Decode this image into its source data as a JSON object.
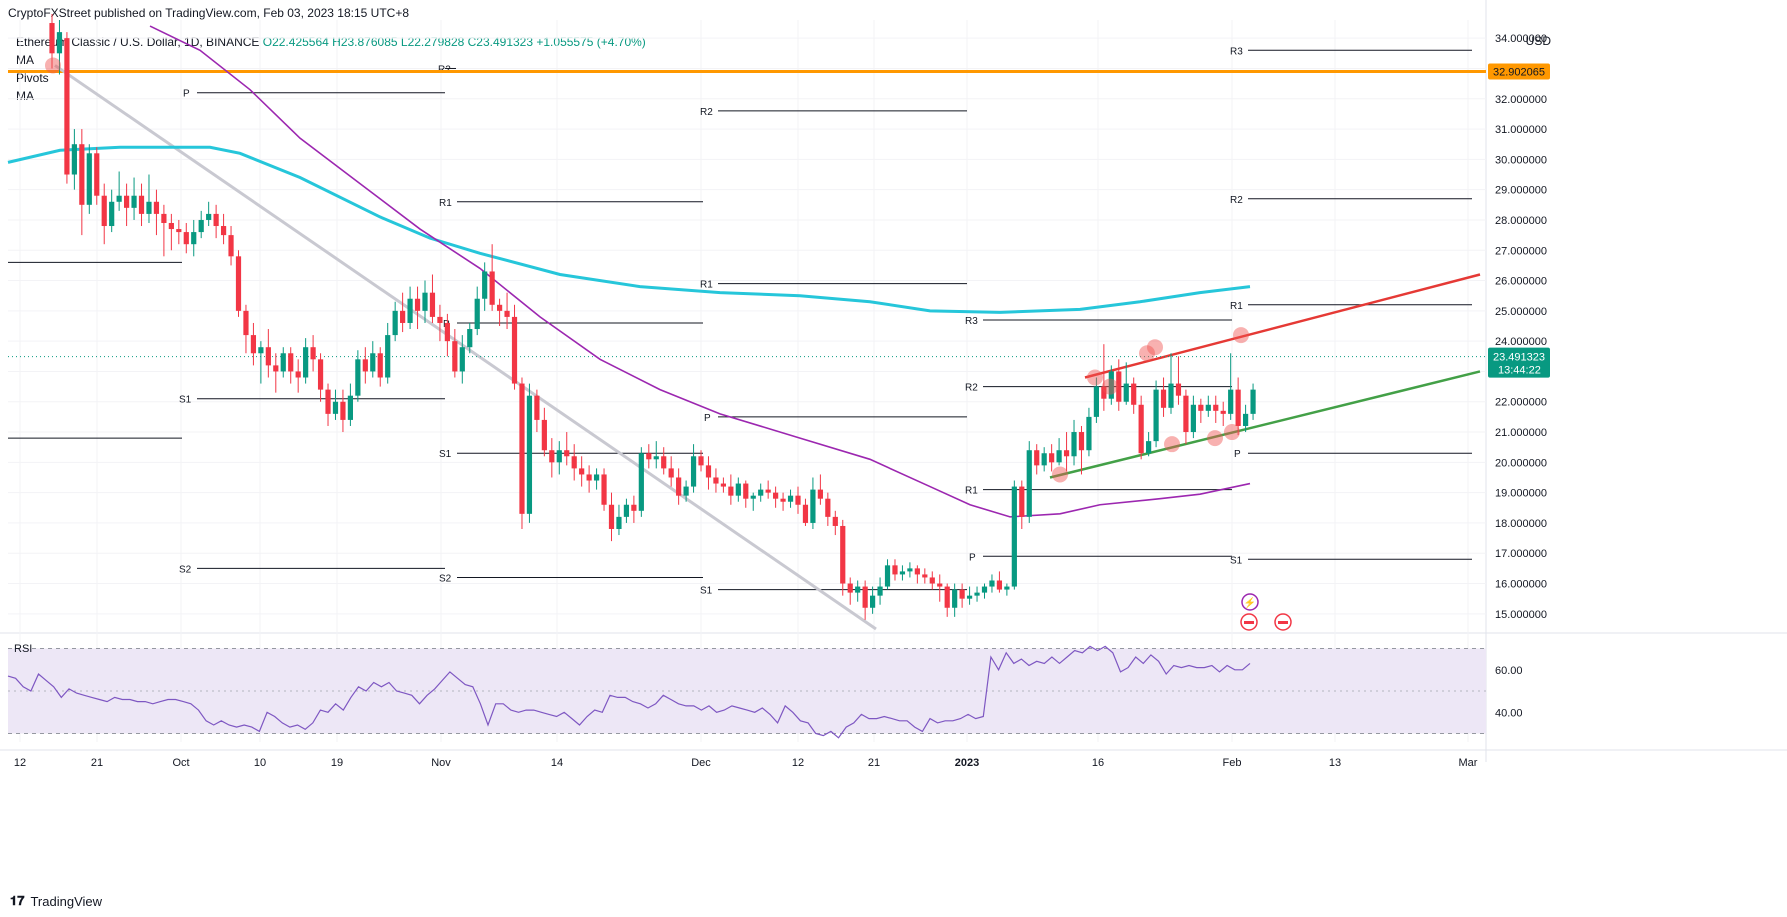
{
  "header": {
    "published": "CryptoFXStreet published on TradingView.com, Feb 03, 2023 18:15 UTC+8"
  },
  "legend": {
    "symbol": "Ethereum Classic / U.S. Dollar, 1D, BINANCE",
    "open": "O22.425564",
    "high": "H23.876085",
    "low": "L22.279828",
    "close": "C23.491323",
    "change": "+1.055575 (+4.70%)",
    "indicators": [
      "MA",
      "Pivots",
      "MA"
    ]
  },
  "currency": "USD",
  "price_labels": {
    "current_price": "23.491323",
    "countdown": "13:44:22",
    "orange_level": "32.902065"
  },
  "brand": "TradingView",
  "colors": {
    "up": "#089981",
    "down": "#f23645",
    "ma200": "#26c6da",
    "ma50": "#9c27b0",
    "orange": "#ff9800",
    "resistance": "#e53935",
    "support": "#43a047",
    "downtrend": "#c9c9d1",
    "rsi_line": "#7e57c2",
    "rsi_band": "#ede7f6"
  },
  "chart_data": [
    {
      "type": "candlestick",
      "title": "Ethereum Classic / U.S. Dollar, 1D, BINANCE",
      "ylim": [
        14.4,
        34.6
      ],
      "y_ticks": [
        "34.000000",
        "33.000000",
        "32.000000",
        "31.000000",
        "30.000000",
        "29.000000",
        "28.000000",
        "27.000000",
        "26.000000",
        "25.000000",
        "24.000000",
        "23.000000",
        "22.000000",
        "21.000000",
        "20.000000",
        "19.000000",
        "18.000000",
        "17.000000",
        "16.000000",
        "15.000000"
      ],
      "x_ticks": [
        "12",
        "21",
        "Oct",
        "10",
        "19",
        "Nov",
        "14",
        "Dec",
        "12",
        "21",
        "2023",
        "16",
        "Feb",
        "13",
        "Mar"
      ],
      "candles": [
        [
          34.5,
          33.5,
          34.8,
          33.0
        ],
        [
          33.5,
          34.2,
          34.6,
          32.8
        ],
        [
          34.0,
          29.5,
          34.2,
          29.2
        ],
        [
          29.5,
          30.5,
          31.0,
          29.0
        ],
        [
          30.5,
          28.5,
          31.0,
          27.5
        ],
        [
          28.5,
          30.2,
          30.5,
          28.2
        ],
        [
          30.2,
          28.8,
          30.4,
          28.5
        ],
        [
          28.8,
          27.8,
          29.2,
          27.2
        ],
        [
          27.8,
          28.6,
          29.0,
          27.6
        ],
        [
          28.6,
          28.8,
          29.6,
          28.3
        ],
        [
          28.8,
          28.4,
          29.2,
          27.8
        ],
        [
          28.4,
          28.8,
          29.4,
          28.0
        ],
        [
          28.8,
          28.2,
          29.2,
          27.8
        ],
        [
          28.2,
          28.6,
          29.5,
          27.9
        ],
        [
          28.6,
          28.2,
          29.0,
          27.5
        ],
        [
          28.2,
          27.9,
          28.5,
          26.8
        ],
        [
          27.9,
          27.7,
          28.2,
          27.0
        ],
        [
          27.7,
          27.6,
          28.0,
          27.2
        ],
        [
          27.6,
          27.2,
          27.9,
          26.9
        ],
        [
          27.2,
          27.6,
          28.0,
          26.8
        ],
        [
          27.6,
          28.0,
          28.3,
          27.4
        ],
        [
          28.0,
          28.2,
          28.6,
          27.8
        ],
        [
          28.2,
          27.8,
          28.5,
          27.4
        ],
        [
          27.8,
          27.5,
          28.2,
          27.2
        ],
        [
          27.5,
          26.8,
          27.8,
          26.5
        ],
        [
          26.8,
          25.0,
          27.0,
          24.8
        ],
        [
          25.0,
          24.2,
          25.2,
          23.6
        ],
        [
          24.2,
          23.6,
          24.6,
          23.2
        ],
        [
          23.6,
          23.8,
          24.0,
          22.6
        ],
        [
          23.8,
          23.2,
          24.4,
          22.8
        ],
        [
          23.2,
          23.0,
          23.6,
          22.3
        ],
        [
          23.0,
          23.6,
          23.8,
          22.8
        ],
        [
          23.6,
          23.0,
          23.8,
          22.6
        ],
        [
          23.0,
          22.8,
          23.4,
          22.3
        ],
        [
          22.8,
          23.8,
          24.1,
          22.6
        ],
        [
          23.8,
          23.4,
          24.2,
          23.0
        ],
        [
          23.4,
          22.4,
          23.6,
          22.0
        ],
        [
          22.4,
          21.6,
          22.6,
          21.2
        ],
        [
          21.6,
          22.0,
          22.4,
          21.4
        ],
        [
          22.0,
          21.4,
          22.4,
          21.0
        ],
        [
          21.4,
          22.2,
          22.6,
          21.2
        ],
        [
          22.2,
          23.4,
          23.7,
          22.0
        ],
        [
          23.4,
          23.0,
          23.8,
          22.6
        ],
        [
          23.0,
          23.6,
          24.0,
          22.8
        ],
        [
          23.6,
          22.8,
          23.8,
          22.5
        ],
        [
          22.8,
          24.2,
          24.6,
          22.6
        ],
        [
          24.2,
          25.0,
          25.3,
          24.0
        ],
        [
          25.0,
          24.6,
          25.6,
          24.3
        ],
        [
          24.6,
          25.4,
          25.8,
          24.4
        ],
        [
          25.4,
          25.0,
          25.8,
          24.4
        ],
        [
          25.0,
          25.6,
          26.0,
          24.6
        ],
        [
          25.6,
          24.8,
          26.2,
          24.6
        ],
        [
          24.8,
          24.6,
          25.2,
          24.0
        ],
        [
          24.6,
          24.0,
          24.9,
          23.5
        ],
        [
          24.0,
          23.0,
          24.4,
          22.8
        ],
        [
          23.0,
          23.8,
          24.2,
          22.6
        ],
        [
          23.8,
          24.4,
          24.6,
          23.6
        ],
        [
          24.4,
          25.4,
          25.8,
          24.2
        ],
        [
          25.4,
          26.3,
          26.6,
          25.0
        ],
        [
          26.3,
          25.2,
          27.2,
          25.0
        ],
        [
          25.2,
          25.0,
          25.4,
          24.5
        ],
        [
          25.0,
          24.8,
          25.6,
          24.4
        ],
        [
          24.8,
          22.6,
          25.2,
          22.4
        ],
        [
          22.6,
          18.3,
          22.8,
          17.8
        ],
        [
          18.3,
          22.2,
          22.6,
          18.0
        ],
        [
          22.2,
          21.4,
          22.4,
          21.0
        ],
        [
          21.4,
          20.4,
          21.8,
          20.2
        ],
        [
          20.4,
          20.0,
          20.8,
          19.5
        ],
        [
          20.0,
          20.4,
          20.7,
          19.6
        ],
        [
          20.4,
          20.2,
          21.0,
          19.9
        ],
        [
          20.2,
          19.8,
          20.6,
          19.4
        ],
        [
          19.8,
          19.6,
          20.2,
          19.2
        ],
        [
          19.6,
          19.4,
          19.9,
          19.0
        ],
        [
          19.4,
          19.6,
          19.8,
          19.1
        ],
        [
          19.6,
          18.6,
          19.8,
          18.4
        ],
        [
          18.6,
          17.8,
          19.0,
          17.4
        ],
        [
          17.8,
          18.2,
          18.6,
          17.6
        ],
        [
          18.2,
          18.6,
          18.8,
          18.0
        ],
        [
          18.6,
          18.4,
          18.9,
          18.0
        ],
        [
          18.4,
          20.3,
          20.5,
          18.2
        ],
        [
          20.3,
          20.1,
          20.6,
          19.8
        ],
        [
          20.1,
          20.2,
          20.7,
          19.8
        ],
        [
          20.2,
          19.8,
          20.5,
          19.6
        ],
        [
          19.8,
          19.5,
          20.2,
          19.2
        ],
        [
          19.5,
          18.9,
          19.8,
          18.6
        ],
        [
          18.9,
          19.2,
          19.4,
          18.7
        ],
        [
          19.2,
          20.2,
          20.6,
          19.0
        ],
        [
          20.2,
          19.9,
          20.4,
          19.7
        ],
        [
          19.9,
          19.5,
          20.2,
          19.1
        ],
        [
          19.5,
          19.3,
          19.8,
          19.0
        ],
        [
          19.3,
          19.2,
          19.5,
          19.0
        ],
        [
          19.2,
          18.9,
          19.6,
          18.6
        ],
        [
          18.9,
          19.3,
          19.5,
          18.7
        ],
        [
          19.3,
          18.8,
          19.4,
          18.5
        ],
        [
          18.8,
          18.9,
          19.0,
          18.4
        ],
        [
          18.9,
          19.1,
          19.3,
          18.7
        ],
        [
          19.1,
          19.0,
          19.4,
          18.8
        ],
        [
          19.0,
          18.8,
          19.2,
          18.5
        ],
        [
          18.8,
          18.7,
          19.0,
          18.4
        ],
        [
          18.7,
          18.9,
          19.1,
          18.5
        ],
        [
          18.9,
          18.6,
          19.2,
          18.3
        ],
        [
          18.6,
          18.0,
          18.8,
          17.9
        ],
        [
          18.0,
          19.1,
          19.5,
          17.8
        ],
        [
          19.1,
          18.8,
          19.6,
          18.6
        ],
        [
          18.8,
          18.2,
          19.0,
          17.9
        ],
        [
          18.2,
          17.9,
          18.4,
          17.6
        ],
        [
          17.9,
          16.0,
          18.1,
          15.6
        ],
        [
          16.0,
          15.7,
          16.2,
          15.3
        ],
        [
          15.7,
          15.9,
          16.1,
          15.4
        ],
        [
          15.9,
          15.2,
          16.1,
          14.8
        ],
        [
          15.2,
          15.6,
          15.9,
          15.0
        ],
        [
          15.6,
          15.9,
          16.2,
          15.3
        ],
        [
          15.9,
          16.6,
          16.8,
          15.8
        ],
        [
          16.6,
          16.3,
          16.8,
          16.1
        ],
        [
          16.3,
          16.4,
          16.6,
          16.1
        ],
        [
          16.4,
          16.5,
          16.7,
          16.2
        ],
        [
          16.5,
          16.3,
          16.6,
          16.0
        ],
        [
          16.3,
          16.2,
          16.5,
          16.0
        ],
        [
          16.2,
          16.0,
          16.4,
          15.8
        ],
        [
          16.0,
          15.9,
          16.3,
          15.4
        ],
        [
          15.9,
          15.2,
          16.0,
          14.9
        ],
        [
          15.2,
          15.8,
          16.0,
          14.9
        ],
        [
          15.8,
          15.5,
          16.0,
          15.2
        ],
        [
          15.5,
          15.6,
          15.9,
          15.3
        ],
        [
          15.6,
          15.7,
          15.9,
          15.4
        ],
        [
          15.7,
          15.9,
          16.0,
          15.5
        ],
        [
          15.9,
          16.1,
          16.3,
          15.7
        ],
        [
          16.1,
          15.8,
          16.4,
          15.7
        ],
        [
          15.8,
          15.9,
          16.0,
          15.6
        ],
        [
          15.9,
          19.2,
          19.4,
          15.8
        ],
        [
          19.2,
          18.2,
          19.4,
          17.8
        ],
        [
          18.2,
          20.4,
          20.7,
          18.0
        ],
        [
          20.4,
          19.9,
          20.6,
          19.6
        ],
        [
          19.9,
          20.3,
          20.5,
          19.7
        ],
        [
          20.3,
          20.0,
          20.6,
          19.7
        ],
        [
          20.0,
          20.4,
          20.8,
          19.9
        ],
        [
          20.4,
          20.2,
          21.0,
          19.7
        ],
        [
          20.2,
          21.0,
          21.4,
          19.9
        ],
        [
          21.0,
          20.4,
          21.2,
          19.6
        ],
        [
          20.4,
          21.5,
          21.8,
          20.2
        ],
        [
          21.5,
          22.5,
          22.8,
          21.3
        ],
        [
          22.5,
          22.1,
          23.9,
          21.7
        ],
        [
          22.1,
          23.0,
          23.2,
          21.9
        ],
        [
          23.0,
          22.0,
          23.4,
          21.7
        ],
        [
          22.0,
          22.6,
          23.3,
          21.9
        ],
        [
          22.6,
          21.9,
          22.8,
          21.6
        ],
        [
          21.9,
          20.3,
          22.2,
          20.1
        ],
        [
          20.3,
          20.7,
          21.0,
          20.2
        ],
        [
          20.7,
          22.4,
          22.7,
          20.5
        ],
        [
          22.4,
          21.8,
          22.8,
          21.5
        ],
        [
          21.8,
          22.6,
          23.6,
          21.6
        ],
        [
          22.6,
          22.2,
          23.5,
          21.9
        ],
        [
          22.2,
          21.0,
          22.4,
          20.6
        ],
        [
          21.0,
          21.9,
          22.2,
          20.8
        ],
        [
          21.9,
          21.7,
          22.1,
          21.3
        ],
        [
          21.7,
          21.9,
          22.2,
          21.5
        ],
        [
          21.9,
          21.7,
          22.2,
          21.3
        ],
        [
          21.7,
          21.6,
          22.0,
          21.2
        ],
        [
          21.6,
          22.4,
          23.6,
          21.4
        ],
        [
          22.4,
          21.2,
          22.8,
          20.9
        ],
        [
          21.2,
          21.6,
          21.9,
          21.0
        ],
        [
          21.6,
          22.4,
          22.6,
          21.4
        ],
        [
          22.4,
          22.4,
          24.1,
          22.2
        ],
        [
          22.4,
          23.49,
          23.88,
          22.28
        ]
      ]
    },
    {
      "type": "line",
      "title": "RSI",
      "ylim": [
        26,
        74
      ],
      "y_ticks": [
        "60.00",
        "40.00"
      ],
      "band": [
        30,
        70
      ],
      "midline": 50,
      "values": [
        57,
        56,
        52,
        50,
        58,
        55,
        52,
        47,
        51,
        49,
        48,
        47,
        46,
        45,
        47,
        46,
        46,
        45,
        45,
        44,
        45,
        46,
        46,
        45,
        44,
        41,
        36,
        34,
        36,
        34,
        33,
        34,
        33,
        31,
        40,
        38,
        35,
        33,
        34,
        32,
        35,
        41,
        40,
        44,
        41,
        47,
        52,
        50,
        54,
        52,
        54,
        50,
        49,
        48,
        44,
        48,
        51,
        55,
        59,
        56,
        53,
        52,
        44,
        34,
        44,
        44,
        41,
        40,
        41,
        41,
        40,
        39,
        38,
        40,
        37,
        34,
        38,
        41,
        40,
        48,
        47,
        47,
        45,
        44,
        42,
        44,
        48,
        46,
        44,
        43,
        43,
        41,
        43,
        40,
        41,
        43,
        42,
        41,
        40,
        42,
        39,
        35,
        43,
        40,
        36,
        35,
        30,
        29,
        31,
        28,
        33,
        35,
        39,
        37,
        37,
        38,
        37,
        36,
        36,
        33,
        31,
        37,
        35,
        36,
        36,
        37,
        39,
        37,
        38,
        66,
        60,
        68,
        63,
        65,
        62,
        64,
        63,
        66,
        63,
        66,
        69,
        68,
        71,
        69,
        71,
        68,
        59,
        61,
        66,
        63,
        67,
        64,
        58,
        62,
        61,
        62,
        61,
        61,
        62,
        59,
        62,
        60,
        60,
        63
      ]
    }
  ]
}
